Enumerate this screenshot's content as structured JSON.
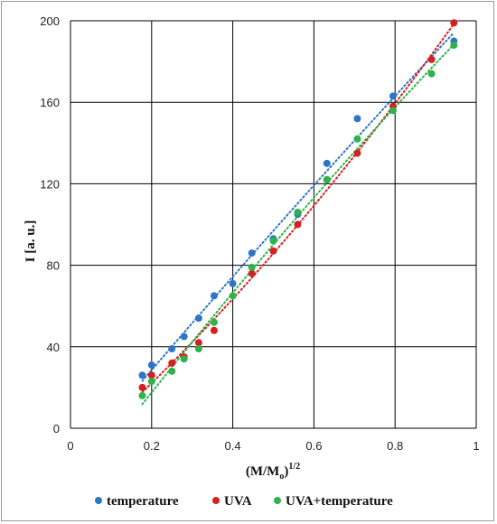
{
  "chart_data": {
    "type": "scatter",
    "xlabel_base": "(M/M",
    "xlabel_sub": "o",
    "xlabel_close": ")",
    "xlabel_sup": "1/2",
    "ylabel": "I [a. u.]",
    "xlim": [
      0,
      1
    ],
    "ylim": [
      0,
      200
    ],
    "xticks": [
      0,
      0.2,
      0.4,
      0.6,
      0.8,
      1
    ],
    "yticks": [
      0,
      40,
      80,
      120,
      160,
      200
    ],
    "xtick_labels": [
      "0",
      "0.2",
      "0.4",
      "0.6",
      "0.8",
      "1"
    ],
    "ytick_labels": [
      "0",
      "40",
      "80",
      "120",
      "160",
      "200"
    ],
    "grid": true,
    "legend_position": "bottom",
    "series": [
      {
        "name": "temperature",
        "color": "#2E75C6",
        "trendline": "dotted",
        "x": [
          0.177,
          0.2,
          0.25,
          0.28,
          0.316,
          0.354,
          0.4,
          0.447,
          0.5,
          0.56,
          0.632,
          0.707,
          0.795,
          0.945
        ],
        "y": [
          26,
          31,
          39,
          45,
          54,
          65,
          71,
          86,
          93,
          105,
          130,
          152,
          163,
          190
        ]
      },
      {
        "name": "UVA",
        "color": "#D42020",
        "trendline": "dotted",
        "x": [
          0.177,
          0.2,
          0.25,
          0.28,
          0.316,
          0.354,
          0.447,
          0.5,
          0.56,
          0.632,
          0.707,
          0.795,
          0.89,
          0.945
        ],
        "y": [
          20,
          26,
          32,
          35,
          42,
          48,
          76,
          87,
          100,
          122,
          135,
          158,
          181,
          199
        ]
      },
      {
        "name": "UVA+temperature",
        "color": "#2DB34A",
        "trendline": "dotted",
        "x": [
          0.177,
          0.2,
          0.25,
          0.28,
          0.316,
          0.354,
          0.4,
          0.447,
          0.5,
          0.56,
          0.632,
          0.707,
          0.795,
          0.89,
          0.945
        ],
        "y": [
          16,
          23,
          28,
          34,
          39,
          52,
          65,
          79,
          92,
          106,
          122,
          142,
          156,
          174,
          188
        ]
      }
    ]
  }
}
